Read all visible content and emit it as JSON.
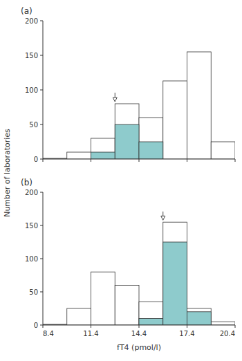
{
  "chart_data": [
    {
      "type": "histogram",
      "title": "(a)",
      "ylabel": "Number of laboratories",
      "bins": [
        8.4,
        9.9,
        11.4,
        12.9,
        14.4,
        15.9,
        17.4,
        18.9,
        20.4
      ],
      "series": [
        {
          "color": "#ffffff",
          "values": [
            1,
            10,
            30,
            80,
            60,
            113,
            155,
            25
          ]
        },
        {
          "color": "#8ecbcc",
          "values": [
            0,
            0,
            10,
            50,
            25,
            0,
            0,
            0
          ]
        }
      ],
      "arrow": {
        "x": 12.9,
        "y_tip": 83,
        "y_tail": 96
      },
      "xlim": [
        8.4,
        20.4
      ],
      "ylim": [
        0,
        200
      ],
      "xticks": [
        8.4,
        11.4,
        14.4,
        17.4,
        20.4
      ],
      "yticks": [
        0,
        50,
        100,
        150,
        200
      ],
      "tick_labels": "y",
      "grid": false
    },
    {
      "type": "histogram",
      "title": "(b)",
      "xlabel": "fT4 (pmol/l)",
      "bins": [
        8.4,
        9.9,
        11.4,
        12.9,
        14.4,
        15.9,
        17.4,
        18.9,
        20.4
      ],
      "series": [
        {
          "color": "#ffffff",
          "values": [
            1,
            25,
            80,
            60,
            35,
            155,
            25,
            5
          ]
        },
        {
          "color": "#8ecbcc",
          "values": [
            0,
            0,
            0,
            0,
            10,
            125,
            20,
            0
          ]
        }
      ],
      "arrow": {
        "x": 15.9,
        "y_tip": 158,
        "y_tail": 171
      },
      "xlim": [
        8.4,
        20.4
      ],
      "ylim": [
        0,
        200
      ],
      "xticks": [
        8.4,
        11.4,
        14.4,
        17.4,
        20.4
      ],
      "yticks": [
        0,
        50,
        100,
        150,
        200
      ],
      "grid": false
    }
  ]
}
